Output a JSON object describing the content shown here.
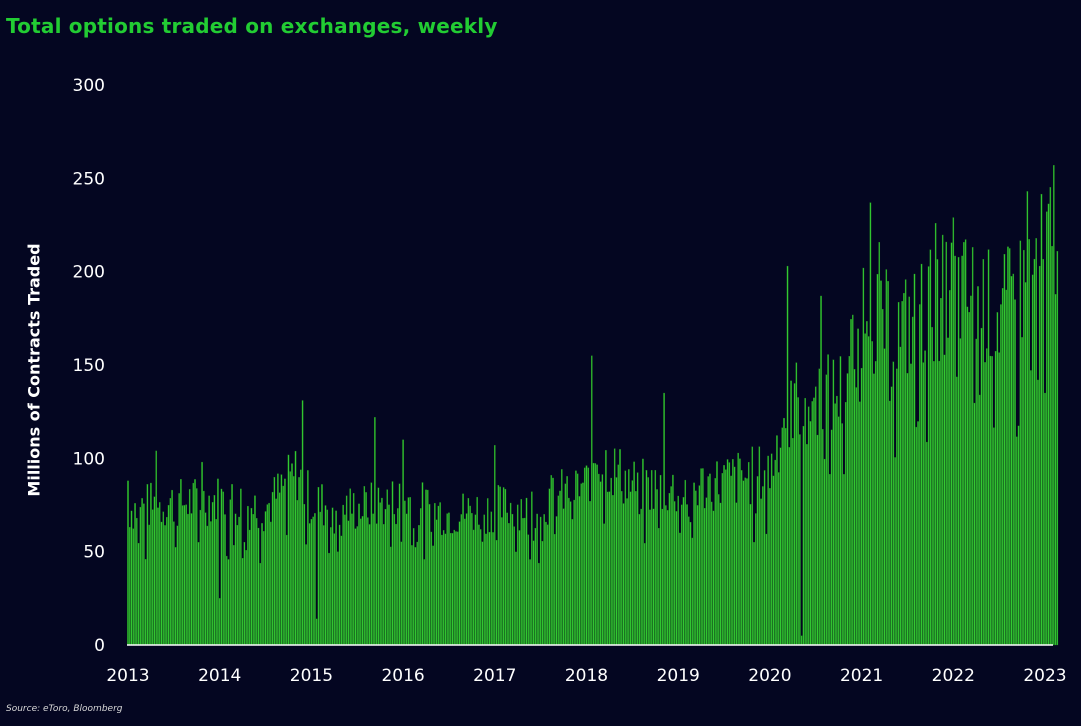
{
  "title": "Total options traded on exchanges, weekly",
  "source": "Source: eToro, Bloomberg",
  "chart_data": {
    "type": "bar",
    "title": "Total options traded on exchanges, weekly",
    "xlabel": "",
    "ylabel": "Millions of Contracts Traded",
    "ylim": [
      0,
      300
    ],
    "yticks": [
      0,
      50,
      100,
      150,
      200,
      250,
      300
    ],
    "xticks": [
      "2013",
      "2014",
      "2015",
      "2016",
      "2017",
      "2018",
      "2019",
      "2020",
      "2021",
      "2022",
      "2023"
    ],
    "xlim": [
      2013,
      2023.15
    ],
    "grid": false,
    "bar_color": "#33cc33",
    "bar_edge_color": "#1e7a1e",
    "background": "#040621",
    "title_color": "#22cc33",
    "weekly_anchor_values": [
      [
        2013.0,
        75
      ],
      [
        2013.5,
        78
      ],
      [
        2014.0,
        80
      ],
      [
        2014.5,
        75
      ],
      [
        2014.85,
        95
      ],
      [
        2015.0,
        78
      ],
      [
        2015.5,
        75
      ],
      [
        2016.0,
        80
      ],
      [
        2016.5,
        72
      ],
      [
        2017.0,
        75
      ],
      [
        2017.5,
        78
      ],
      [
        2018.0,
        88
      ],
      [
        2018.1,
        105
      ],
      [
        2018.5,
        88
      ],
      [
        2019.0,
        85
      ],
      [
        2019.5,
        90
      ],
      [
        2020.0,
        95
      ],
      [
        2020.2,
        135
      ],
      [
        2020.5,
        135
      ],
      [
        2020.8,
        140
      ],
      [
        2021.0,
        185
      ],
      [
        2021.1,
        205
      ],
      [
        2021.3,
        170
      ],
      [
        2021.5,
        175
      ],
      [
        2021.8,
        190
      ],
      [
        2022.0,
        195
      ],
      [
        2022.3,
        190
      ],
      [
        2022.5,
        180
      ],
      [
        2022.8,
        200
      ],
      [
        2023.0,
        215
      ],
      [
        2023.15,
        230
      ]
    ],
    "peaks": [
      {
        "x": 2013.0,
        "value": 88
      },
      {
        "x": 2013.3,
        "value": 104
      },
      {
        "x": 2013.8,
        "value": 98
      },
      {
        "x": 2014.9,
        "value": 131
      },
      {
        "x": 2015.7,
        "value": 122
      },
      {
        "x": 2016.0,
        "value": 110
      },
      {
        "x": 2017.0,
        "value": 107
      },
      {
        "x": 2018.05,
        "value": 155
      },
      {
        "x": 2018.85,
        "value": 135
      },
      {
        "x": 2020.2,
        "value": 203
      },
      {
        "x": 2020.55,
        "value": 187
      },
      {
        "x": 2021.1,
        "value": 237
      },
      {
        "x": 2021.8,
        "value": 226
      },
      {
        "x": 2022.0,
        "value": 229
      },
      {
        "x": 2022.8,
        "value": 243
      },
      {
        "x": 2023.1,
        "value": 257
      }
    ],
    "dips": [
      {
        "x": 2014.0,
        "value": 25
      },
      {
        "x": 2015.05,
        "value": 14
      },
      {
        "x": 2020.35,
        "value": 5
      },
      {
        "x": 2023.0,
        "value": 135
      }
    ]
  }
}
